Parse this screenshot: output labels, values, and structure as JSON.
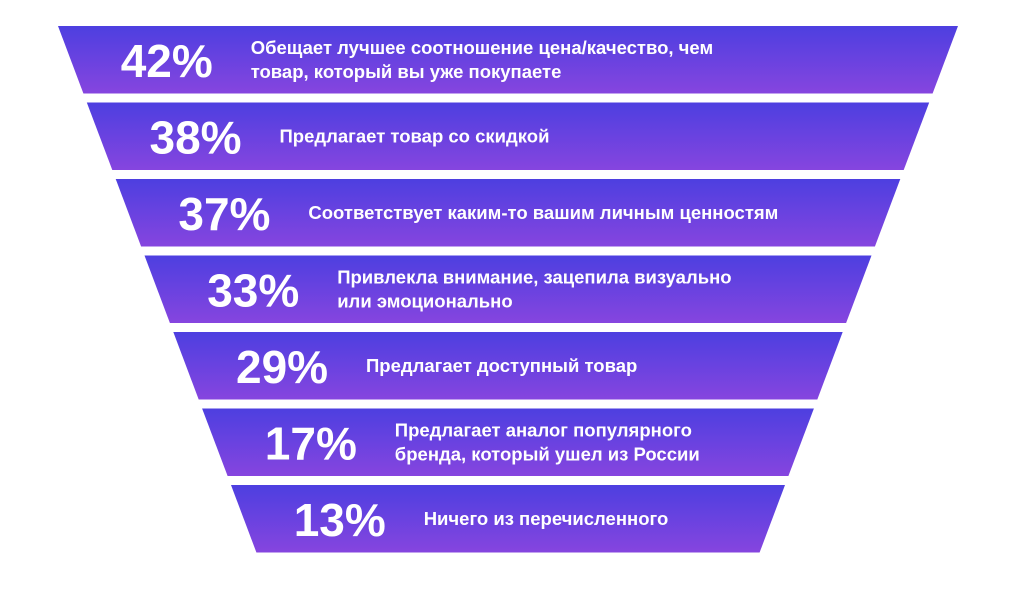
{
  "colors": {
    "top": "#4d3fe0",
    "bottom": "#8645df",
    "text": "#ffffff",
    "background": "#ffffff"
  },
  "chart_data": {
    "type": "funnel",
    "unit": "%",
    "items": [
      {
        "value": 42,
        "value_label": "42%",
        "label_lines": [
          "Обещает лучшее соотношение цена/качество, чем",
          "товар, который вы уже покупаете"
        ]
      },
      {
        "value": 38,
        "value_label": "38%",
        "label_lines": [
          "Предлагает товар со скидкой"
        ]
      },
      {
        "value": 37,
        "value_label": "37%",
        "label_lines": [
          "Соответствует каким-то вашим личным ценностям"
        ]
      },
      {
        "value": 33,
        "value_label": "33%",
        "label_lines": [
          "Привлекла внимание, зацепила визуально",
          "или эмоционально"
        ]
      },
      {
        "value": 29,
        "value_label": "29%",
        "label_lines": [
          "Предлагает доступный товар"
        ]
      },
      {
        "value": 17,
        "value_label": "17%",
        "label_lines": [
          "Предлагает аналог популярного",
          "бренда, который ушел из России"
        ]
      },
      {
        "value": 13,
        "value_label": "13%",
        "label_lines": [
          "Ничего из перечисленного"
        ]
      }
    ]
  }
}
